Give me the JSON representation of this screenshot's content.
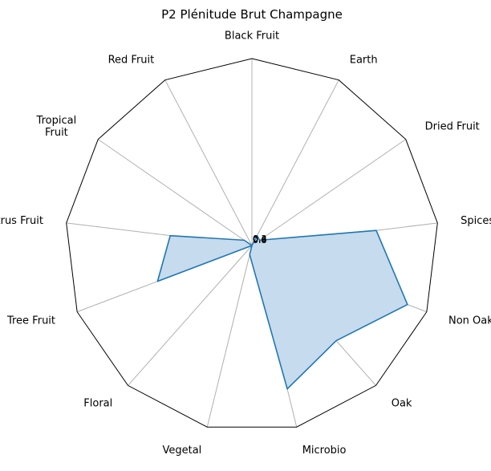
{
  "chart_data": {
    "type": "radar",
    "title": "P2 Plénitude Brut Champagne",
    "categories": [
      "Black Fruit",
      "Earth",
      "Dried Fruit",
      "Spices",
      "Non Oak",
      "Oak",
      "Microbio",
      "Vegetal",
      "Floral",
      "Tree Fruit",
      "Citrus Fruit",
      "Tropical Fruit",
      "Red Fruit"
    ],
    "label_lines": [
      [
        "Black Fruit"
      ],
      [
        "Earth"
      ],
      [
        "Dried Fruit"
      ],
      [
        "Spices"
      ],
      [
        "Non Oak"
      ],
      [
        "Oak"
      ],
      [
        "Microbio"
      ],
      [
        "Vegetal"
      ],
      [
        "Floral"
      ],
      [
        "Tree Fruit"
      ],
      [
        "Citrus Fruit"
      ],
      [
        "Tropical",
        "Fruit"
      ],
      [
        "Red Fruit"
      ]
    ],
    "series": [
      {
        "values": [
          0.0,
          0.06,
          0.05,
          0.67,
          0.89,
          0.68,
          0.79,
          0.05,
          0.0,
          0.54,
          0.44,
          0.05,
          0.0
        ],
        "line_color": "#1f77b4",
        "fill_color": "#c6dbed"
      }
    ],
    "radial_ticks": [
      "0.2",
      "0.4",
      "0.6",
      "0.8"
    ],
    "rlim": [
      0,
      1
    ],
    "grid": true,
    "legend": false,
    "colors": {
      "grid": "#b0b0b0",
      "frame": "#000000"
    }
  }
}
